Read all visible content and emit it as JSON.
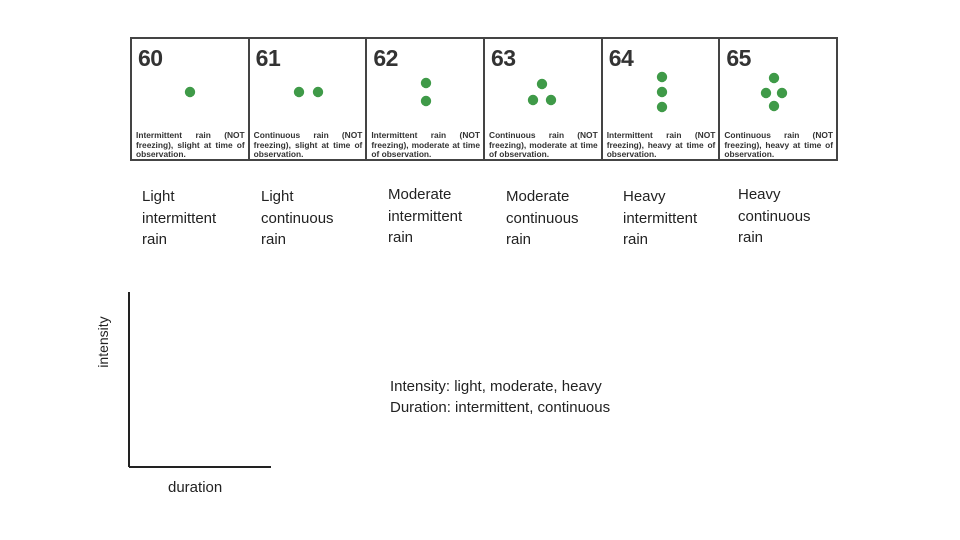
{
  "codes_table": {
    "dot_color": "#3f9a48",
    "cells": [
      {
        "code": "60",
        "dot_count": 1,
        "arrangement": "single",
        "description": "Intermittent rain (NOT freezing), slight at time of observation."
      },
      {
        "code": "61",
        "dot_count": 2,
        "arrangement": "horizontal-pair",
        "description": "Continuous rain (NOT freezing), slight at time of observation."
      },
      {
        "code": "62",
        "dot_count": 2,
        "arrangement": "vertical-pair",
        "description": "Intermittent rain (NOT freezing), moderate at time of observation."
      },
      {
        "code": "63",
        "dot_count": 3,
        "arrangement": "triangle",
        "description": "Continuous rain (NOT freezing), moderate at time of observation."
      },
      {
        "code": "64",
        "dot_count": 3,
        "arrangement": "vertical-column",
        "description": "Intermittent rain (NOT freezing), heavy at time of observation."
      },
      {
        "code": "65",
        "dot_count": 4,
        "arrangement": "diamond",
        "description": "Continuous rain (NOT freezing), heavy at time of observation."
      }
    ]
  },
  "captions": [
    {
      "lines": [
        "Light",
        "intermittent",
        "rain"
      ]
    },
    {
      "lines": [
        "Light",
        "continuous",
        "rain"
      ]
    },
    {
      "lines": [
        "Moderate",
        "intermittent",
        "rain"
      ]
    },
    {
      "lines": [
        "Moderate",
        "continuous",
        "rain"
      ]
    },
    {
      "lines": [
        "Heavy",
        "intermittent",
        "rain"
      ]
    },
    {
      "lines": [
        "Heavy",
        "continuous",
        "rain"
      ]
    }
  ],
  "axes": {
    "y_label": "intensity",
    "x_label": "duration"
  },
  "legend": {
    "intensity_line": "Intensity:  light, moderate, heavy",
    "duration_line": "Duration:  intermittent, continuous"
  }
}
